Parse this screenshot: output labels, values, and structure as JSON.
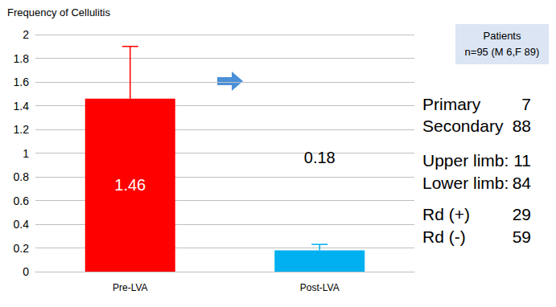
{
  "chart_data": {
    "type": "bar",
    "title": "Frequency of Cellulitis",
    "categories": [
      "Pre-LVA",
      "Post-LVA"
    ],
    "values": [
      1.46,
      0.18
    ],
    "errors": [
      0.44,
      0.05
    ],
    "colors": [
      "#ff0000",
      "#00b0f0"
    ],
    "data_labels": true,
    "ylim": [
      0,
      2
    ],
    "yticks": [
      0,
      0.2,
      0.4,
      0.6,
      0.8,
      1,
      1.2,
      1.4,
      1.6,
      1.8,
      2
    ],
    "grid": true
  },
  "panel": {
    "header": [
      "Patients",
      "n=95 (M 6,F 89)"
    ],
    "rows": [
      [
        "Primary",
        7
      ],
      [
        "Secondary",
        88
      ],
      [
        "Upper limb:",
        11
      ],
      [
        "Lower limb:",
        84
      ],
      [
        "Rd (+)",
        29
      ],
      [
        "Rd (-)",
        59
      ]
    ]
  }
}
